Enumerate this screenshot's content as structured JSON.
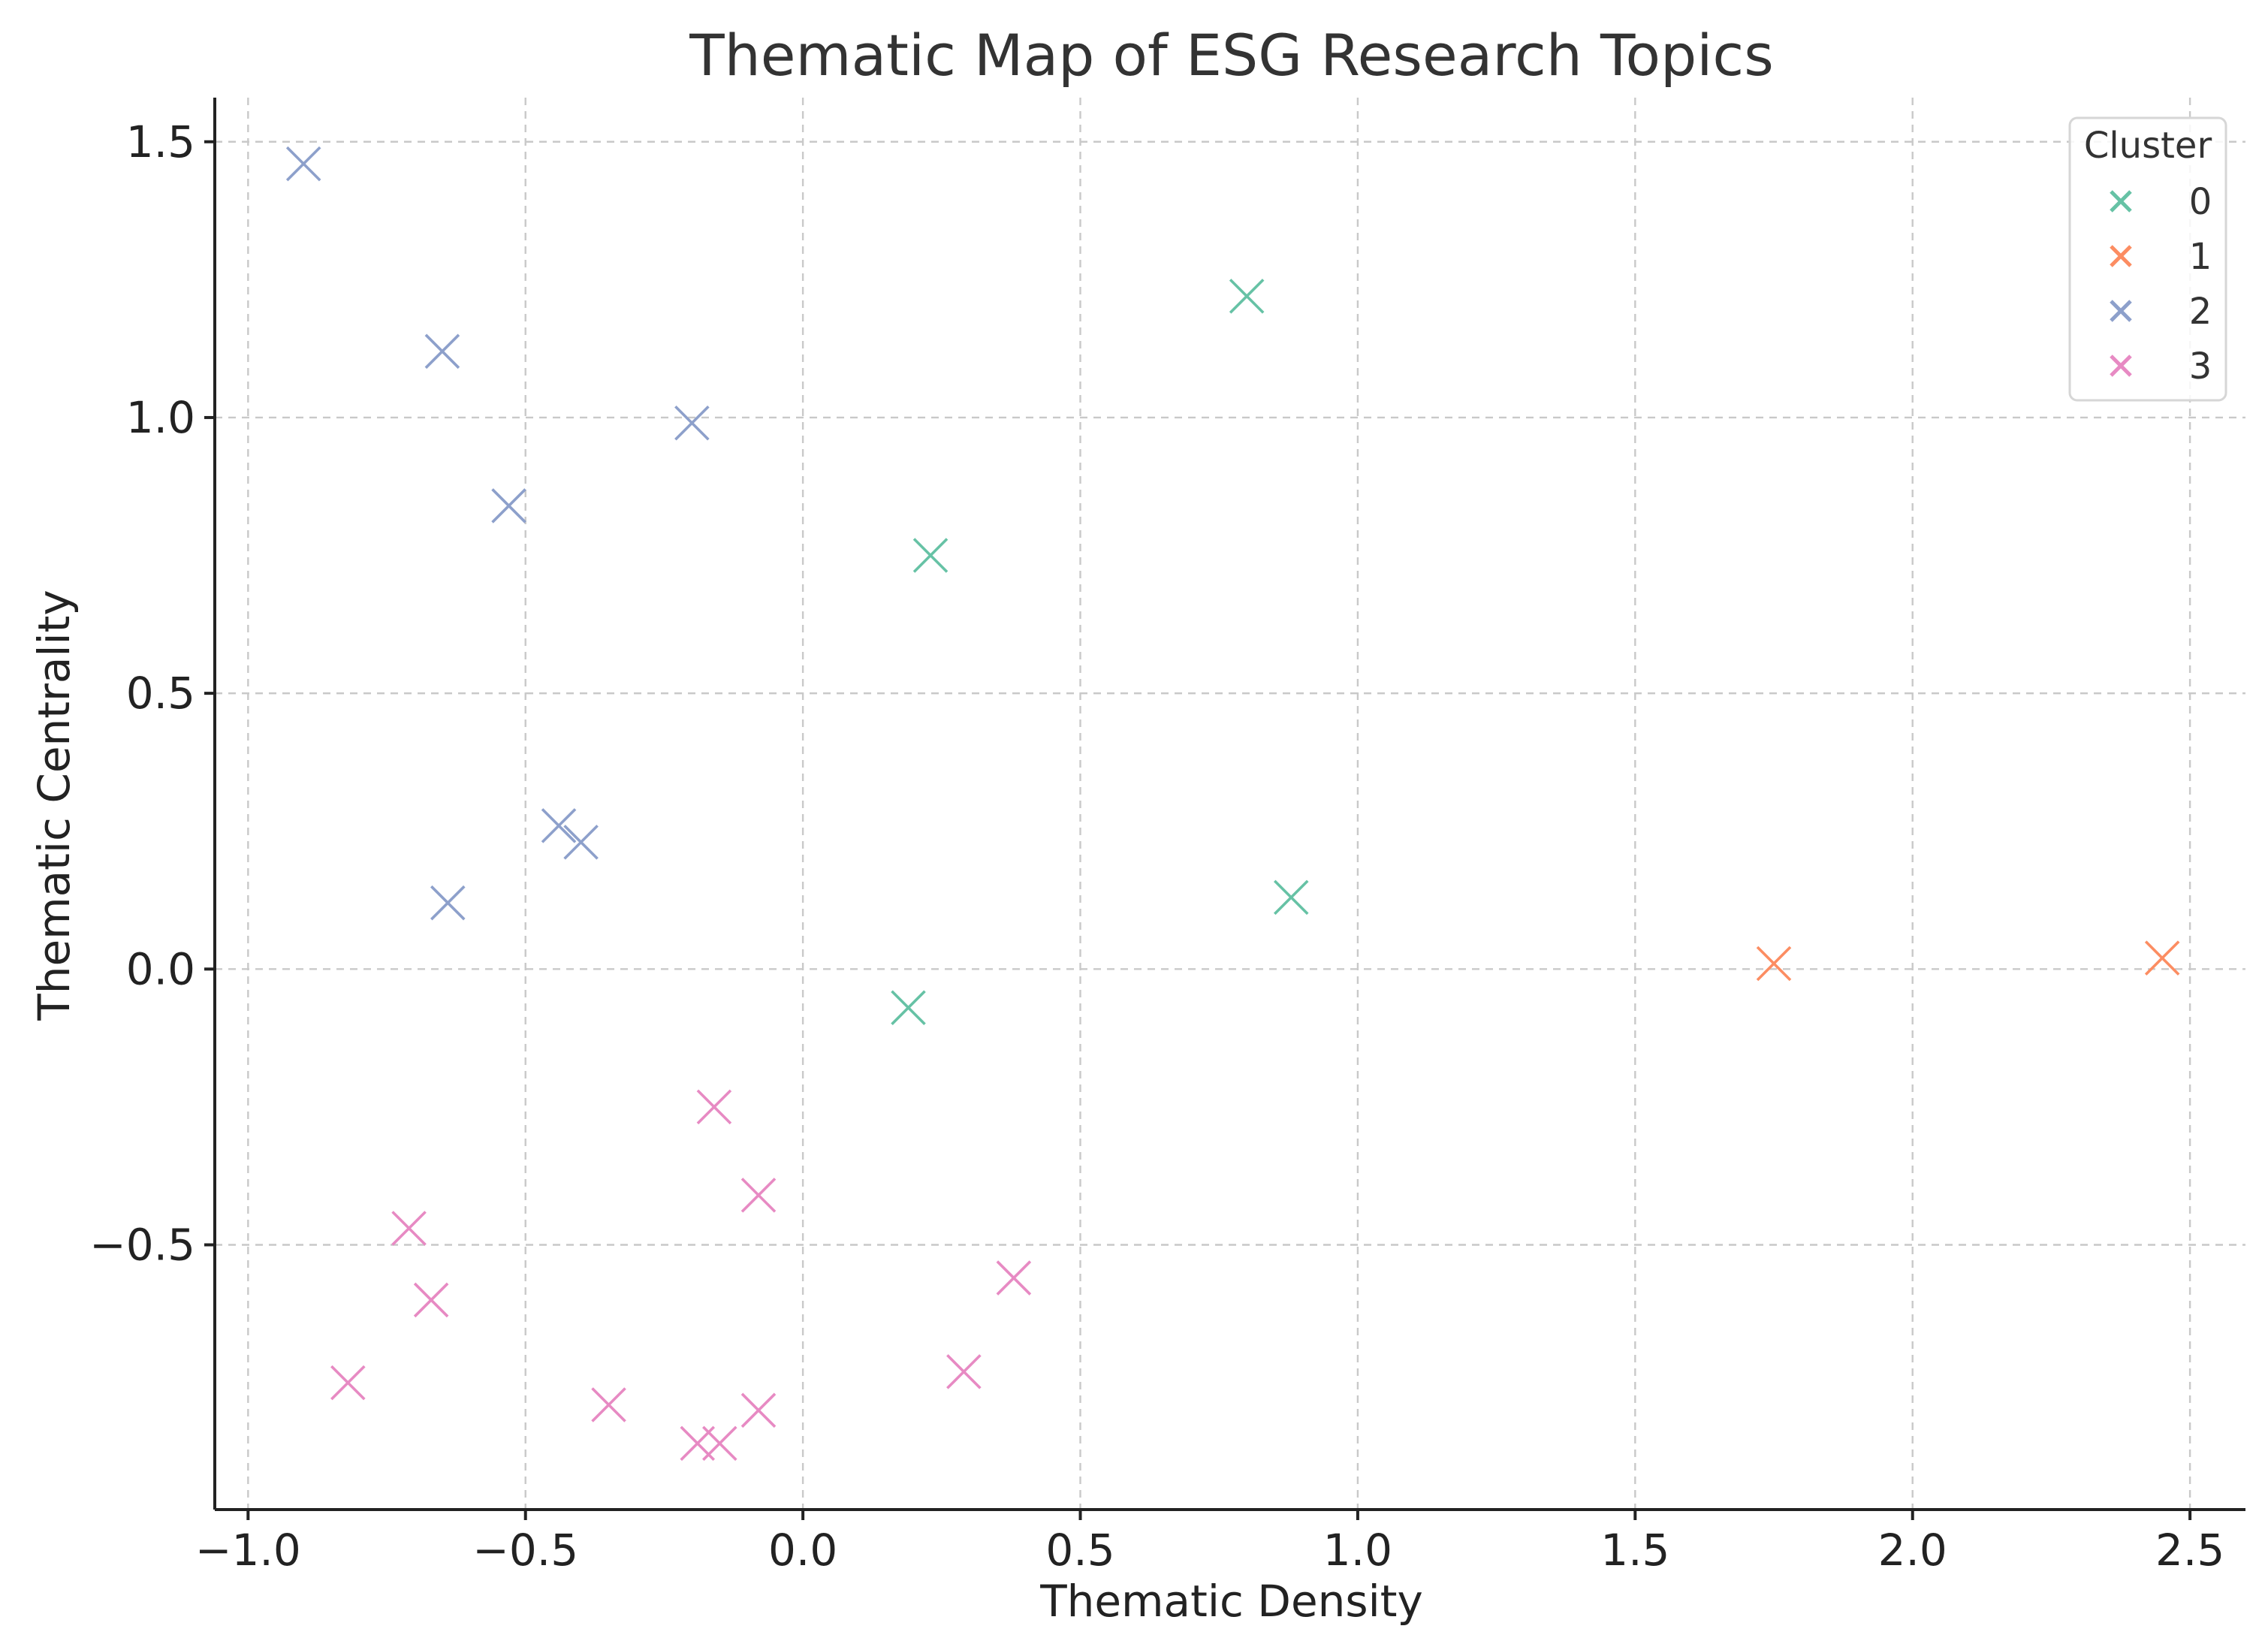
{
  "chart_data": {
    "type": "scatter",
    "title": "Thematic Map of ESG Research Topics",
    "xlabel": "Thematic Density",
    "ylabel": "Thematic Centrality",
    "xlim": [
      -1.06,
      2.6
    ],
    "ylim": [
      -0.98,
      1.58
    ],
    "xticks": [
      -1.0,
      -0.5,
      0.0,
      0.5,
      1.0,
      1.5,
      2.0,
      2.5
    ],
    "xtick_labels": [
      "−1.0",
      "−0.5",
      "0.0",
      "0.5",
      "1.0",
      "1.5",
      "2.0",
      "2.5"
    ],
    "yticks": [
      -0.5,
      0.0,
      0.5,
      1.0,
      1.5
    ],
    "ytick_labels": [
      "−0.5",
      "0.0",
      "0.5",
      "1.0",
      "1.5"
    ],
    "grid": true,
    "marker": "x",
    "legend": {
      "title": "Cluster",
      "position": "top-right"
    },
    "series": [
      {
        "name": "0",
        "color": "#66c2a5",
        "points": [
          {
            "x": 0.8,
            "y": 1.22
          },
          {
            "x": 0.23,
            "y": 0.75
          },
          {
            "x": 0.88,
            "y": 0.13
          },
          {
            "x": 0.19,
            "y": -0.07
          }
        ]
      },
      {
        "name": "1",
        "color": "#fc8d62",
        "points": [
          {
            "x": 1.75,
            "y": 0.01
          },
          {
            "x": 2.45,
            "y": 0.02
          }
        ]
      },
      {
        "name": "2",
        "color": "#8da0cb",
        "points": [
          {
            "x": -0.9,
            "y": 1.46
          },
          {
            "x": -0.65,
            "y": 1.12
          },
          {
            "x": -0.2,
            "y": 0.99
          },
          {
            "x": -0.53,
            "y": 0.84
          },
          {
            "x": -0.44,
            "y": 0.26
          },
          {
            "x": -0.4,
            "y": 0.23
          },
          {
            "x": -0.64,
            "y": 0.12
          }
        ]
      },
      {
        "name": "3",
        "color": "#e78ac3",
        "points": [
          {
            "x": -0.16,
            "y": -0.25
          },
          {
            "x": -0.08,
            "y": -0.41
          },
          {
            "x": -0.71,
            "y": -0.47
          },
          {
            "x": 0.38,
            "y": -0.56
          },
          {
            "x": -0.67,
            "y": -0.6
          },
          {
            "x": 0.29,
            "y": -0.73
          },
          {
            "x": -0.82,
            "y": -0.75
          },
          {
            "x": -0.35,
            "y": -0.79
          },
          {
            "x": -0.08,
            "y": -0.8
          },
          {
            "x": -0.19,
            "y": -0.86
          },
          {
            "x": -0.15,
            "y": -0.86
          }
        ]
      }
    ]
  }
}
